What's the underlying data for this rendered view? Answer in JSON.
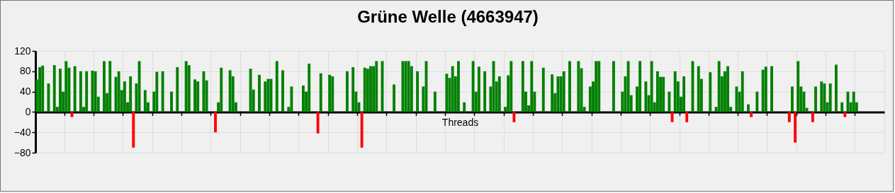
{
  "chart_data": {
    "type": "bar",
    "title": "Grüne Welle (4663947)",
    "xlabel": "Threads",
    "categories": [
      null,
      null,
      null,
      null,
      null,
      null,
      null,
      null,
      null,
      null,
      null,
      null,
      null,
      null,
      null,
      null,
      null,
      null,
      null,
      null,
      null,
      null,
      null,
      null,
      null,
      null,
      null,
      null,
      null,
      null,
      null,
      null,
      null,
      null,
      null,
      null,
      null,
      null,
      null,
      null,
      null,
      null,
      null,
      null,
      null,
      null,
      null,
      null,
      null,
      null,
      null,
      null,
      null,
      null,
      null,
      null,
      null,
      null,
      null,
      null,
      null,
      null,
      null,
      null,
      null,
      null,
      null,
      null,
      null,
      null,
      null,
      null,
      null,
      null,
      null,
      null,
      null,
      null,
      null,
      null,
      null,
      null,
      null,
      null,
      null,
      null,
      null,
      null,
      null,
      null,
      null,
      null,
      null,
      null,
      null,
      null,
      null,
      null,
      null,
      null,
      null,
      null,
      null,
      null,
      null,
      null,
      null,
      null,
      null,
      null,
      null,
      null,
      null,
      null,
      null,
      null,
      null,
      null,
      null,
      null,
      null,
      null,
      null,
      null,
      null,
      null,
      null,
      null,
      null,
      null,
      null,
      null,
      null,
      null,
      null,
      null,
      null,
      null,
      null,
      null,
      null,
      null,
      null,
      null,
      null,
      null,
      null,
      null,
      null,
      null,
      null,
      null,
      null,
      null,
      null,
      null,
      null,
      null,
      null,
      null,
      null,
      null,
      null,
      null,
      null,
      null,
      null,
      null,
      null,
      null,
      null,
      null,
      null,
      null,
      null,
      null,
      null,
      null,
      null,
      null,
      null,
      null,
      null,
      null,
      null,
      null,
      null,
      null,
      null,
      null,
      null,
      null,
      null,
      null,
      null,
      null,
      null,
      null,
      null,
      null,
      null,
      null,
      null,
      null,
      null,
      null,
      null,
      null,
      null,
      null,
      null,
      null,
      null,
      null,
      null,
      null,
      null,
      null,
      null,
      null,
      null,
      null,
      null,
      null,
      null,
      null,
      null,
      null,
      null,
      null,
      null,
      null,
      null,
      null,
      null,
      null,
      null,
      null,
      null,
      null,
      null,
      null,
      null,
      null,
      null,
      null,
      null,
      null,
      null,
      null,
      null,
      null,
      null,
      null,
      null,
      null,
      null,
      null,
      null,
      null,
      null,
      null,
      null,
      null,
      null,
      null,
      null,
      null,
      null,
      null,
      null,
      null,
      null,
      null,
      null,
      null,
      null,
      null,
      null,
      null,
      null,
      null,
      null,
      null,
      null,
      null,
      null,
      null,
      null,
      null
    ],
    "values": [
      64,
      88,
      91,
      null,
      56,
      null,
      92,
      10,
      85,
      40,
      100,
      87,
      -10,
      90,
      null,
      80,
      10,
      80,
      null,
      81,
      80,
      30,
      null,
      100,
      37,
      100,
      null,
      69,
      80,
      43,
      60,
      19,
      70,
      -70,
      56,
      100,
      null,
      43,
      19,
      null,
      40,
      79,
      null,
      80,
      null,
      null,
      40,
      null,
      88,
      null,
      null,
      100,
      92,
      null,
      64,
      60,
      null,
      80,
      62,
      null,
      null,
      -40,
      19,
      87,
      null,
      null,
      82,
      70,
      19,
      null,
      null,
      null,
      null,
      85,
      44,
      null,
      73,
      null,
      60,
      65,
      65,
      null,
      100,
      null,
      82,
      null,
      10,
      50,
      null,
      null,
      null,
      52,
      40,
      95,
      null,
      null,
      -42,
      76,
      null,
      null,
      73,
      70,
      null,
      null,
      null,
      null,
      80,
      null,
      88,
      40,
      19,
      -70,
      87,
      85,
      90,
      90,
      100,
      null,
      100,
      null,
      null,
      null,
      54,
      null,
      null,
      100,
      100,
      100,
      90,
      null,
      80,
      null,
      50,
      100,
      null,
      null,
      40,
      null,
      null,
      null,
      75,
      67,
      90,
      70,
      100,
      null,
      19,
      null,
      null,
      100,
      40,
      89,
      null,
      80,
      null,
      50,
      100,
      60,
      70,
      null,
      10,
      72,
      100,
      -20,
      null,
      null,
      100,
      40,
      13,
      100,
      40,
      null,
      null,
      87,
      null,
      null,
      74,
      37,
      70,
      70,
      80,
      null,
      100,
      null,
      null,
      100,
      86,
      10,
      null,
      50,
      60,
      100,
      100,
      null,
      null,
      null,
      null,
      100,
      null,
      null,
      40,
      70,
      100,
      33,
      null,
      50,
      100,
      null,
      60,
      33,
      100,
      19,
      80,
      69,
      69,
      null,
      40,
      -20,
      80,
      60,
      30,
      70,
      -20,
      null,
      100,
      null,
      90,
      65,
      null,
      null,
      78,
      null,
      10,
      100,
      70,
      80,
      90,
      10,
      null,
      50,
      40,
      80,
      null,
      15,
      -10,
      null,
      40,
      null,
      83,
      89,
      null,
      90,
      null,
      null,
      null,
      null,
      null,
      -20,
      50,
      -60,
      100,
      50,
      40,
      8,
      null,
      -20,
      50,
      null,
      60,
      56,
      19,
      56,
      null,
      93,
      null,
      19,
      -10,
      40,
      19,
      40,
      19,
      null,
      null,
      null,
      null,
      null,
      null,
      null,
      null,
      null
    ],
    "colors": [
      "#008000",
      "#008000",
      "#008000",
      null,
      "#008000",
      null,
      "#008000",
      "#008000",
      "#008000",
      "#008000",
      "#008000",
      "#008000",
      "#ff0000",
      "#008000",
      null,
      "#008000",
      "#008000",
      "#008000",
      null,
      "#008000",
      "#008000",
      "#008000",
      null,
      "#008000",
      "#008000",
      "#008000",
      null,
      "#008000",
      "#008000",
      "#008000",
      "#008000",
      "#008000",
      "#008000",
      "#ff0000",
      "#008000",
      "#008000",
      null,
      "#008000",
      "#008000",
      null,
      "#008000",
      "#008000",
      null,
      "#008000",
      null,
      null,
      "#008000",
      null,
      "#008000",
      null,
      null,
      "#008000",
      "#008000",
      null,
      "#008000",
      "#008000",
      null,
      "#008000",
      "#008000",
      null,
      null,
      "#ff0000",
      "#008000",
      "#008000",
      null,
      null,
      "#008000",
      "#008000",
      "#008000",
      null,
      null,
      null,
      null,
      "#008000",
      "#008000",
      null,
      "#008000",
      null,
      "#008000",
      "#008000",
      "#008000",
      null,
      "#008000",
      null,
      "#008000",
      null,
      "#008000",
      "#008000",
      null,
      null,
      null,
      "#008000",
      "#008000",
      "#008000",
      null,
      null,
      "#ff0000",
      "#008000",
      null,
      null,
      "#008000",
      "#008000",
      null,
      null,
      null,
      null,
      "#008000",
      null,
      "#008000",
      "#008000",
      "#008000",
      "#ff0000",
      "#008000",
      "#008000",
      "#008000",
      "#008000",
      "#008000",
      null,
      "#008000",
      null,
      null,
      null,
      "#008000",
      null,
      null,
      "#008000",
      "#008000",
      "#008000",
      "#008000",
      null,
      "#008000",
      null,
      "#008000",
      "#008000",
      null,
      null,
      "#008000",
      null,
      null,
      null,
      "#008000",
      "#008000",
      "#008000",
      "#008000",
      "#008000",
      null,
      "#008000",
      null,
      null,
      "#008000",
      "#008000",
      "#008000",
      null,
      "#008000",
      null,
      "#008000",
      "#008000",
      "#008000",
      "#008000",
      null,
      "#008000",
      "#008000",
      "#008000",
      "#ff0000",
      null,
      null,
      "#008000",
      "#008000",
      "#008000",
      "#008000",
      "#008000",
      null,
      null,
      "#008000",
      null,
      null,
      "#008000",
      "#008000",
      "#008000",
      "#008000",
      "#008000",
      null,
      "#008000",
      null,
      null,
      "#008000",
      "#008000",
      "#008000",
      null,
      "#008000",
      "#008000",
      "#008000",
      "#008000",
      null,
      null,
      null,
      null,
      "#008000",
      null,
      null,
      "#008000",
      "#008000",
      "#008000",
      "#008000",
      null,
      "#008000",
      "#008000",
      null,
      "#008000",
      "#008000",
      "#008000",
      "#008000",
      "#008000",
      "#008000",
      "#008000",
      null,
      "#008000",
      "#ff0000",
      "#008000",
      "#008000",
      "#008000",
      "#008000",
      "#ff0000",
      null,
      "#008000",
      null,
      "#008000",
      "#008000",
      null,
      null,
      "#008000",
      null,
      "#008000",
      "#008000",
      "#008000",
      "#008000",
      "#008000",
      "#008000",
      null,
      "#008000",
      "#008000",
      "#008000",
      null,
      "#008000",
      "#ff0000",
      null,
      "#008000",
      null,
      "#008000",
      "#008000",
      null,
      "#008000",
      null,
      null,
      null,
      null,
      null,
      "#ff0000",
      "#008000",
      "#ff0000",
      "#008000",
      "#008000",
      "#008000",
      "#008000",
      null,
      "#ff0000",
      "#008000",
      null,
      "#008000",
      "#008000",
      "#008000",
      "#008000",
      null,
      "#008000",
      null,
      "#008000",
      "#ff0000",
      "#008000",
      "#008000",
      "#008000",
      "#008000",
      null,
      null,
      null,
      null,
      null,
      null,
      null,
      null,
      null
    ],
    "ylim": [
      -80,
      120
    ],
    "yticks": [
      -80,
      -40,
      0,
      40,
      80,
      120
    ],
    "grid": true
  }
}
